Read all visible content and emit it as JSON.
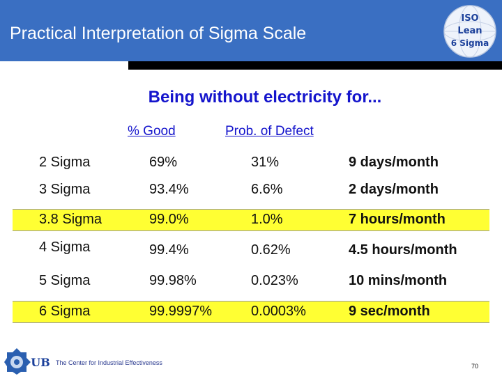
{
  "header": {
    "title": "Practical Interpretation of Sigma Scale",
    "badge_lines": [
      "ISO",
      "Lean",
      "6 Sigma"
    ]
  },
  "subtitle": "Being without electricity for...",
  "columns": {
    "good": "% Good",
    "defect": "Prob. of Defect"
  },
  "rows": [
    {
      "sigma": "2 Sigma",
      "good": "69%",
      "defect": "31%",
      "downtime": "9 days/month",
      "highlight": false
    },
    {
      "sigma": "3 Sigma",
      "good": "93.4%",
      "defect": "6.6%",
      "downtime": "2 days/month",
      "highlight": false
    },
    {
      "sigma": "3.8 Sigma",
      "good": "99.0%",
      "defect": "1.0%",
      "downtime": "7 hours/month",
      "highlight": true
    },
    {
      "sigma": "4 Sigma",
      "good": "99.4%",
      "defect": "0.62%",
      "downtime": "4.5 hours/month",
      "highlight": false
    },
    {
      "sigma": "5 Sigma",
      "good": "99.98%",
      "defect": "0.023%",
      "downtime": "10 mins/month",
      "highlight": false
    },
    {
      "sigma": "6 Sigma",
      "good": "99.9997%",
      "defect": "0.0003%",
      "downtime": "9 sec/month",
      "highlight": true
    }
  ],
  "footer": {
    "org": "The Center for Industrial Effectiveness",
    "page_number": "70"
  },
  "colors": {
    "header_bg": "#3a6fc2",
    "title_blue": "#1414cc",
    "highlight": "#ffff33"
  }
}
